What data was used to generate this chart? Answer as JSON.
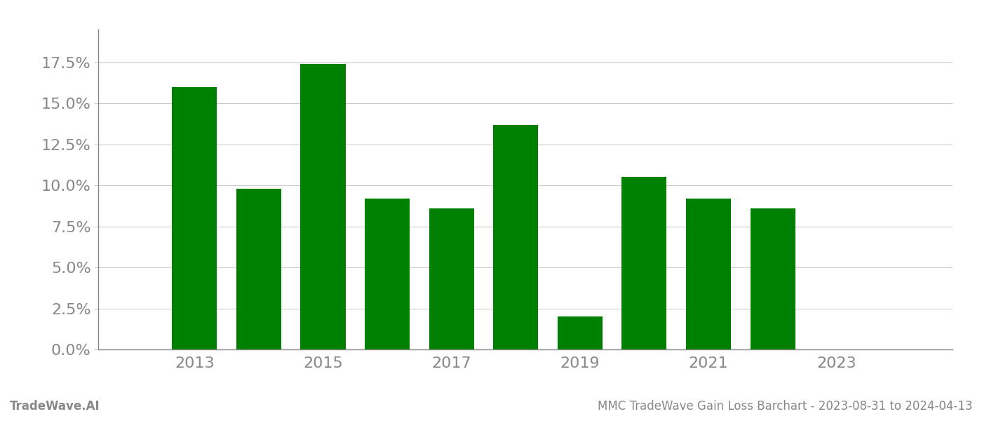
{
  "years": [
    2013,
    2014,
    2015,
    2016,
    2017,
    2018,
    2019,
    2020,
    2021,
    2022
  ],
  "values": [
    0.16,
    0.098,
    0.174,
    0.092,
    0.086,
    0.137,
    0.02,
    0.105,
    0.092,
    0.086
  ],
  "bar_color": "#008000",
  "background_color": "#ffffff",
  "grid_color": "#cccccc",
  "axis_label_color": "#888888",
  "ylim": [
    0.0,
    0.195
  ],
  "yticks": [
    0.0,
    0.025,
    0.05,
    0.075,
    0.1,
    0.125,
    0.15,
    0.175
  ],
  "xticks": [
    2013,
    2015,
    2017,
    2019,
    2021,
    2023
  ],
  "xlim": [
    2011.5,
    2024.8
  ],
  "footer_left": "TradeWave.AI",
  "footer_right": "MMC TradeWave Gain Loss Barchart - 2023-08-31 to 2024-04-13",
  "footer_color": "#888888",
  "footer_fontsize": 12,
  "tick_fontsize": 16,
  "bar_width": 0.7
}
